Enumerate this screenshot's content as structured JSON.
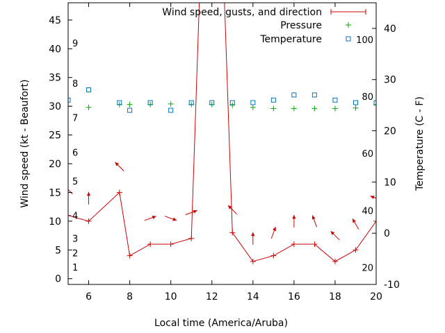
{
  "chart_data": {
    "type": "line",
    "title": "",
    "xlabel": "Local time (America/Aruba)",
    "ylabel_left": "Wind speed (kt - Beaufort)",
    "ylabel_right": "Temperature (C - F)",
    "xlim": [
      5,
      20
    ],
    "ylim_left": [
      -1,
      48
    ],
    "ylim_right": [
      -10,
      45
    ],
    "x_ticks": [
      6,
      8,
      10,
      12,
      14,
      16,
      18,
      20
    ],
    "y_ticks_left": [
      0,
      5,
      10,
      15,
      20,
      25,
      30,
      35,
      40,
      45
    ],
    "y_ticks_right": [
      -10,
      0,
      10,
      20,
      30,
      40
    ],
    "beaufort_labels": [
      {
        "label": "1",
        "kt": 2
      },
      {
        "label": "2",
        "kt": 4.5
      },
      {
        "label": "3",
        "kt": 7
      },
      {
        "label": "4",
        "kt": 11
      },
      {
        "label": "5",
        "kt": 17
      },
      {
        "label": "6",
        "kt": 22
      },
      {
        "label": "7",
        "kt": 28
      },
      {
        "label": "8",
        "kt": 34
      },
      {
        "label": "9",
        "kt": 41
      }
    ],
    "fahrenheit_labels": [
      {
        "label": "20",
        "temp_c": -6.7
      },
      {
        "label": "40",
        "temp_c": 4.4
      },
      {
        "label": "60",
        "temp_c": 15.6
      },
      {
        "label": "80",
        "temp_c": 26.7
      },
      {
        "label": "100",
        "temp_c": 37.8
      }
    ],
    "legend": [
      {
        "name": "Wind speed, gusts, and direction",
        "color": "#cc0000",
        "style": "line"
      },
      {
        "name": "Pressure",
        "color": "#00aa00",
        "style": "plus"
      },
      {
        "name": "Temperature",
        "color": "#0072bd",
        "style": "square"
      }
    ],
    "series": [
      {
        "name": "Wind speed, gusts, and direction",
        "x": [
          5,
          6,
          7.5,
          8,
          9,
          10,
          11,
          11.5,
          12.5,
          13,
          14,
          15,
          16,
          17,
          18,
          19,
          20
        ],
        "y": [
          11,
          10,
          15,
          4,
          6,
          6,
          7,
          60,
          60,
          8,
          3,
          4,
          6,
          6,
          3,
          5,
          10
        ]
      },
      {
        "name": "Pressure",
        "x": [
          5,
          6,
          7.5,
          8,
          9,
          10,
          11,
          12,
          13,
          14,
          15,
          16,
          17,
          18,
          19,
          20
        ],
        "y": [
          30,
          29.8,
          30.3,
          30.3,
          30.3,
          30.4,
          30.3,
          30.3,
          30.2,
          29.8,
          29.6,
          29.6,
          29.6,
          29.6,
          29.7,
          30.2
        ]
      },
      {
        "name": "Temperature",
        "x": [
          5,
          6,
          7.5,
          8,
          9,
          10,
          11,
          12,
          13,
          14,
          15,
          16,
          17,
          18,
          19,
          20
        ],
        "y": [
          26,
          28,
          25.5,
          24,
          25.5,
          24,
          25.5,
          25.5,
          25.5,
          25.5,
          26,
          27,
          27,
          26,
          25.5,
          25.5
        ]
      }
    ],
    "wind_arrows": [
      {
        "x": 5,
        "kt": 15.5,
        "dir_deg": 135
      },
      {
        "x": 6,
        "kt": 14,
        "dir_deg": 90
      },
      {
        "x": 7.5,
        "kt": 19.5,
        "dir_deg": 135
      },
      {
        "x": 9,
        "kt": 10.5,
        "dir_deg": 20
      },
      {
        "x": 10,
        "kt": 10.5,
        "dir_deg": 340
      },
      {
        "x": 11,
        "kt": 11.5,
        "dir_deg": 20
      },
      {
        "x": 13,
        "kt": 12,
        "dir_deg": 135
      },
      {
        "x": 14,
        "kt": 7,
        "dir_deg": 90
      },
      {
        "x": 15,
        "kt": 8,
        "dir_deg": 70
      },
      {
        "x": 16,
        "kt": 10,
        "dir_deg": 90
      },
      {
        "x": 17,
        "kt": 10,
        "dir_deg": 110
      },
      {
        "x": 18,
        "kt": 7.5,
        "dir_deg": 135
      },
      {
        "x": 19,
        "kt": 9.5,
        "dir_deg": 120
      },
      {
        "x": 20,
        "kt": 14,
        "dir_deg": 160
      }
    ]
  }
}
